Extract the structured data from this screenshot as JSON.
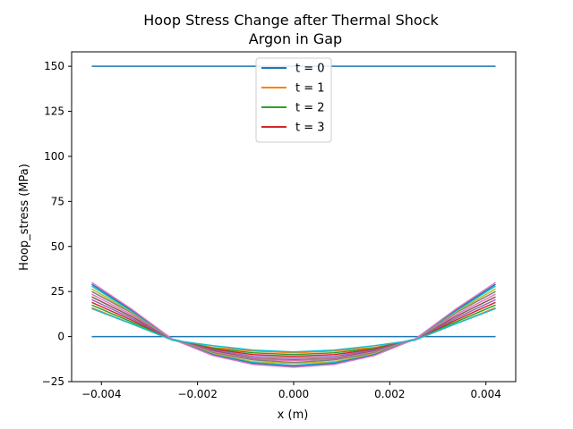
{
  "chart_data": {
    "type": "line",
    "title": "Hoop Stress Change after Thermal Shock",
    "subtitle": "Argon in Gap",
    "xlabel": "x (m)",
    "ylabel": "Hoop_stress (MPa)",
    "xlim": [
      -0.00462,
      0.00462
    ],
    "ylim": [
      -25,
      158
    ],
    "xticks": [
      {
        "value": -0.004,
        "label": "−0.004"
      },
      {
        "value": -0.002,
        "label": "−0.002"
      },
      {
        "value": 0.0,
        "label": "0.000"
      },
      {
        "value": 0.002,
        "label": "0.002"
      },
      {
        "value": 0.004,
        "label": "0.004"
      }
    ],
    "yticks": [
      {
        "value": -25,
        "label": "−25"
      },
      {
        "value": 0,
        "label": "0"
      },
      {
        "value": 25,
        "label": "25"
      },
      {
        "value": 50,
        "label": "50"
      },
      {
        "value": 75,
        "label": "75"
      },
      {
        "value": 100,
        "label": "100"
      },
      {
        "value": 125,
        "label": "125"
      },
      {
        "value": 150,
        "label": "150"
      }
    ],
    "grid": false,
    "legend_position": "top-center",
    "x": [
      -0.0042,
      -0.00336,
      -0.00252,
      -0.00168,
      -0.00084,
      0.0,
      0.00084,
      0.00168,
      0.00252,
      0.00336,
      0.0042
    ],
    "series": [
      {
        "name": "t = 0",
        "color": "#1f77b4",
        "values": [
          150,
          150,
          150,
          150,
          150,
          150,
          150,
          150,
          150,
          150,
          150
        ],
        "in_legend": true
      },
      {
        "name": "t = 0",
        "color": "#1f77b4",
        "values": [
          0,
          0,
          0,
          0,
          0,
          0,
          0,
          0,
          0,
          0,
          0
        ],
        "in_legend": false
      },
      {
        "name": "t = 1",
        "color": "#ff7f0e",
        "values": [
          16,
          7,
          -2,
          -6,
          -8,
          -9,
          -8,
          -6,
          -2,
          7,
          16
        ],
        "in_legend": true
      },
      {
        "name": "t = 2",
        "color": "#2ca02c",
        "values": [
          17.5,
          8,
          -1.5,
          -6.5,
          -9,
          -10,
          -9,
          -6.5,
          -1.5,
          8,
          17.5
        ],
        "in_legend": true
      },
      {
        "name": "t = 3",
        "color": "#d62728",
        "values": [
          19,
          9,
          -1.5,
          -7,
          -10,
          -11,
          -10,
          -7,
          -1.5,
          9,
          19
        ],
        "in_legend": true
      },
      {
        "color": "#9467bd",
        "values": [
          20.5,
          10,
          -1.5,
          -7.5,
          -11,
          -12,
          -11,
          -7.5,
          -1.5,
          10,
          20.5
        ],
        "in_legend": false
      },
      {
        "color": "#8c564b",
        "values": [
          22,
          11,
          -1.5,
          -8,
          -12,
          -13,
          -12,
          -8,
          -1.5,
          11,
          22
        ],
        "in_legend": false
      },
      {
        "color": "#e377c2",
        "values": [
          23.5,
          12,
          -1.5,
          -8.5,
          -12.5,
          -13.5,
          -12.5,
          -8.5,
          -1.5,
          12,
          23.5
        ],
        "in_legend": false
      },
      {
        "color": "#7f7f7f",
        "values": [
          25,
          13,
          -1.5,
          -9,
          -13,
          -14.5,
          -13,
          -9,
          -1.5,
          13,
          25
        ],
        "in_legend": false
      },
      {
        "color": "#bcbd22",
        "values": [
          26.5,
          13.5,
          -1.5,
          -9.5,
          -14,
          -15,
          -14,
          -9.5,
          -1.5,
          13.5,
          26.5
        ],
        "in_legend": false
      },
      {
        "color": "#17becf",
        "values": [
          28,
          14,
          -1.5,
          -10,
          -14.5,
          -16,
          -14.5,
          -10,
          -1.5,
          14,
          28
        ],
        "in_legend": false
      },
      {
        "color": "#1f77b4",
        "values": [
          29,
          14.5,
          -1.5,
          -10,
          -15,
          -16.5,
          -15,
          -10,
          -1.5,
          14.5,
          29
        ],
        "in_legend": false
      },
      {
        "color": "#e377c2",
        "values": [
          30,
          15,
          -1.5,
          -10.5,
          -15.5,
          -17,
          -15.5,
          -10.5,
          -1.5,
          15,
          30
        ],
        "in_legend": false
      },
      {
        "color": "#17becf",
        "values": [
          15.5,
          7,
          -2,
          -5,
          -7.5,
          -8.5,
          -7.5,
          -5,
          -2,
          7,
          15.5
        ],
        "in_legend": false
      }
    ]
  }
}
